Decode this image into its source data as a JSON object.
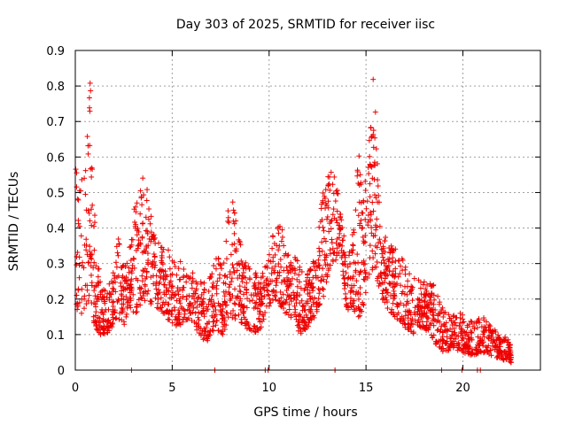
{
  "chart_data": {
    "type": "scatter",
    "title": "Day 303 of 2025, SRMTID for receiver iisc",
    "xlabel": "GPS time / hours",
    "ylabel": "SRMTID / TECUs",
    "xlim": [
      0,
      24
    ],
    "ylim": [
      0,
      0.9
    ],
    "xticks": [
      0,
      5,
      10,
      15,
      20
    ],
    "yticks": [
      0,
      0.1,
      0.2,
      0.3,
      0.4,
      0.5,
      0.6,
      0.7,
      0.8,
      0.9
    ],
    "grid": true,
    "marker": "+",
    "color": "#ee0000",
    "envelope": [
      [
        0.0,
        0.18,
        0.6
      ],
      [
        0.3,
        0.15,
        0.52
      ],
      [
        0.6,
        0.18,
        0.7
      ],
      [
        0.75,
        0.2,
        0.85
      ],
      [
        1.0,
        0.12,
        0.45
      ],
      [
        1.3,
        0.1,
        0.24
      ],
      [
        1.6,
        0.1,
        0.22
      ],
      [
        1.9,
        0.12,
        0.27
      ],
      [
        2.2,
        0.14,
        0.4
      ],
      [
        2.5,
        0.12,
        0.3
      ],
      [
        2.8,
        0.18,
        0.35
      ],
      [
        3.1,
        0.15,
        0.48
      ],
      [
        3.4,
        0.18,
        0.57
      ],
      [
        3.7,
        0.2,
        0.52
      ],
      [
        4.0,
        0.18,
        0.4
      ],
      [
        4.4,
        0.17,
        0.36
      ],
      [
        4.8,
        0.14,
        0.34
      ],
      [
        5.2,
        0.12,
        0.32
      ],
      [
        5.6,
        0.13,
        0.3
      ],
      [
        6.0,
        0.14,
        0.28
      ],
      [
        6.4,
        0.1,
        0.27
      ],
      [
        6.8,
        0.07,
        0.25
      ],
      [
        7.2,
        0.12,
        0.33
      ],
      [
        7.6,
        0.1,
        0.3
      ],
      [
        8.0,
        0.15,
        0.52
      ],
      [
        8.4,
        0.14,
        0.38
      ],
      [
        8.8,
        0.12,
        0.3
      ],
      [
        9.2,
        0.1,
        0.28
      ],
      [
        9.6,
        0.12,
        0.26
      ],
      [
        10.0,
        0.18,
        0.34
      ],
      [
        10.4,
        0.2,
        0.45
      ],
      [
        10.8,
        0.16,
        0.38
      ],
      [
        11.2,
        0.14,
        0.33
      ],
      [
        11.6,
        0.1,
        0.3
      ],
      [
        12.0,
        0.12,
        0.28
      ],
      [
        12.4,
        0.15,
        0.33
      ],
      [
        12.8,
        0.2,
        0.52
      ],
      [
        13.1,
        0.28,
        0.58
      ],
      [
        13.4,
        0.3,
        0.55
      ],
      [
        13.7,
        0.34,
        0.48
      ],
      [
        14.0,
        0.16,
        0.3
      ],
      [
        14.3,
        0.18,
        0.38
      ],
      [
        14.6,
        0.14,
        0.62
      ],
      [
        14.9,
        0.18,
        0.5
      ],
      [
        15.2,
        0.25,
        0.7
      ],
      [
        15.4,
        0.3,
        0.85
      ],
      [
        15.7,
        0.22,
        0.45
      ],
      [
        16.0,
        0.18,
        0.38
      ],
      [
        16.5,
        0.15,
        0.35
      ],
      [
        17.0,
        0.12,
        0.3
      ],
      [
        17.5,
        0.1,
        0.28
      ],
      [
        18.0,
        0.12,
        0.25
      ],
      [
        18.5,
        0.08,
        0.24
      ],
      [
        19.0,
        0.05,
        0.18
      ],
      [
        19.5,
        0.06,
        0.16
      ],
      [
        20.0,
        0.05,
        0.16
      ],
      [
        20.5,
        0.04,
        0.14
      ],
      [
        21.0,
        0.05,
        0.15
      ],
      [
        21.5,
        0.04,
        0.13
      ],
      [
        22.0,
        0.03,
        0.1
      ],
      [
        22.5,
        0.02,
        0.08
      ]
    ],
    "zero_points": [
      2.9,
      7.2,
      9.8,
      9.95,
      13.4,
      18.9,
      19.95,
      20.75,
      20.9
    ],
    "n_points": 2200
  }
}
